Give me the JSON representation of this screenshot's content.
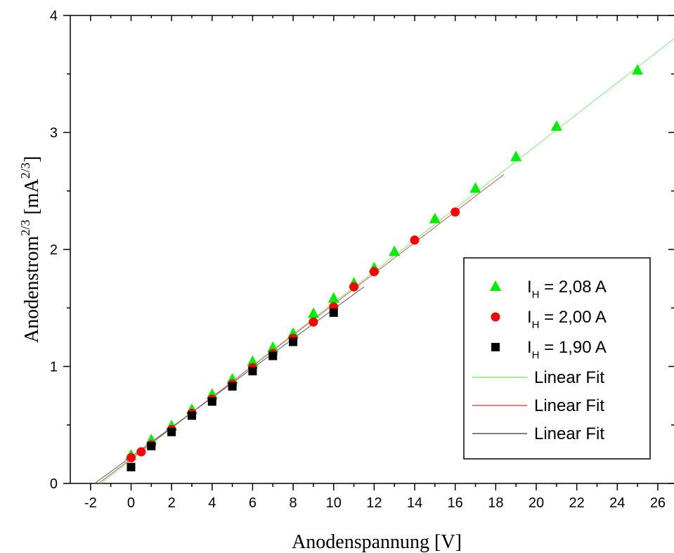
{
  "chart_data": {
    "type": "scatter",
    "xlabel": "Anodenspannung [V]",
    "ylabel": {
      "base": "Anodenstrom",
      "exp": "2/3",
      "unit_open": " [mA",
      "unit_exp": "2/3",
      "unit_close": "]"
    },
    "xlim": [
      -3,
      26.8
    ],
    "ylim": [
      0,
      4
    ],
    "x_ticks": [
      -2,
      0,
      2,
      4,
      6,
      8,
      10,
      12,
      14,
      16,
      18,
      20,
      22,
      24,
      26
    ],
    "x_tick_labels": [
      "-2",
      "0",
      "2",
      "4",
      "6",
      "8",
      "10",
      "12",
      "14",
      "16",
      "18",
      "20",
      "22",
      "24",
      "26"
    ],
    "y_ticks": [
      0,
      1,
      2,
      3,
      4
    ],
    "y_tick_labels": [
      "0",
      "1",
      "2",
      "3",
      "4"
    ],
    "grid": false,
    "legend_position": "right",
    "series": [
      {
        "name": "I_H = 2,08 A",
        "label_main": "I",
        "label_sub": "H",
        "label_rest": " = 2,08 A",
        "marker": "triangle",
        "color": "#00ee00",
        "x": [
          0,
          1,
          2,
          3,
          4,
          5,
          6,
          7,
          8,
          9,
          10,
          11,
          12,
          13,
          15,
          17,
          19,
          21,
          25
        ],
        "y": [
          0.24,
          0.37,
          0.49,
          0.63,
          0.76,
          0.89,
          1.04,
          1.16,
          1.28,
          1.45,
          1.58,
          1.71,
          1.84,
          1.98,
          2.26,
          2.52,
          2.79,
          3.05,
          3.53
        ]
      },
      {
        "name": "I_H = 2,00 A",
        "label_main": "I",
        "label_sub": "H",
        "label_rest": " = 2,00 A",
        "marker": "circle",
        "color": "#ff0000",
        "x": [
          0,
          0.5,
          1,
          2,
          3,
          4,
          5,
          6,
          7,
          8,
          9,
          10,
          11,
          12,
          14,
          16
        ],
        "y": [
          0.22,
          0.27,
          0.33,
          0.46,
          0.6,
          0.72,
          0.85,
          0.99,
          1.11,
          1.24,
          1.38,
          1.51,
          1.68,
          1.81,
          2.08,
          2.32
        ]
      },
      {
        "name": "I_H = 1,90 A",
        "label_main": "I",
        "label_sub": "H",
        "label_rest": " = 1,90 A",
        "marker": "square",
        "color": "#000000",
        "x": [
          0,
          1,
          2,
          3,
          4,
          5,
          6,
          7,
          8,
          10
        ],
        "y": [
          0.14,
          0.32,
          0.44,
          0.58,
          0.7,
          0.83,
          0.96,
          1.09,
          1.21,
          1.46
        ]
      }
    ],
    "fits": [
      {
        "name": "Linear Fit",
        "color": "#7cf07c",
        "x": [
          -1.5,
          26.8
        ],
        "y": [
          0,
          3.8
        ]
      },
      {
        "name": "Linear Fit",
        "color": "#e05050",
        "x": [
          -1.6,
          18.4
        ],
        "y": [
          0,
          2.64
        ]
      },
      {
        "name": "Linear Fit",
        "color": "#555566",
        "x": [
          -1.8,
          11.5
        ],
        "y": [
          0,
          1.68
        ]
      }
    ]
  }
}
